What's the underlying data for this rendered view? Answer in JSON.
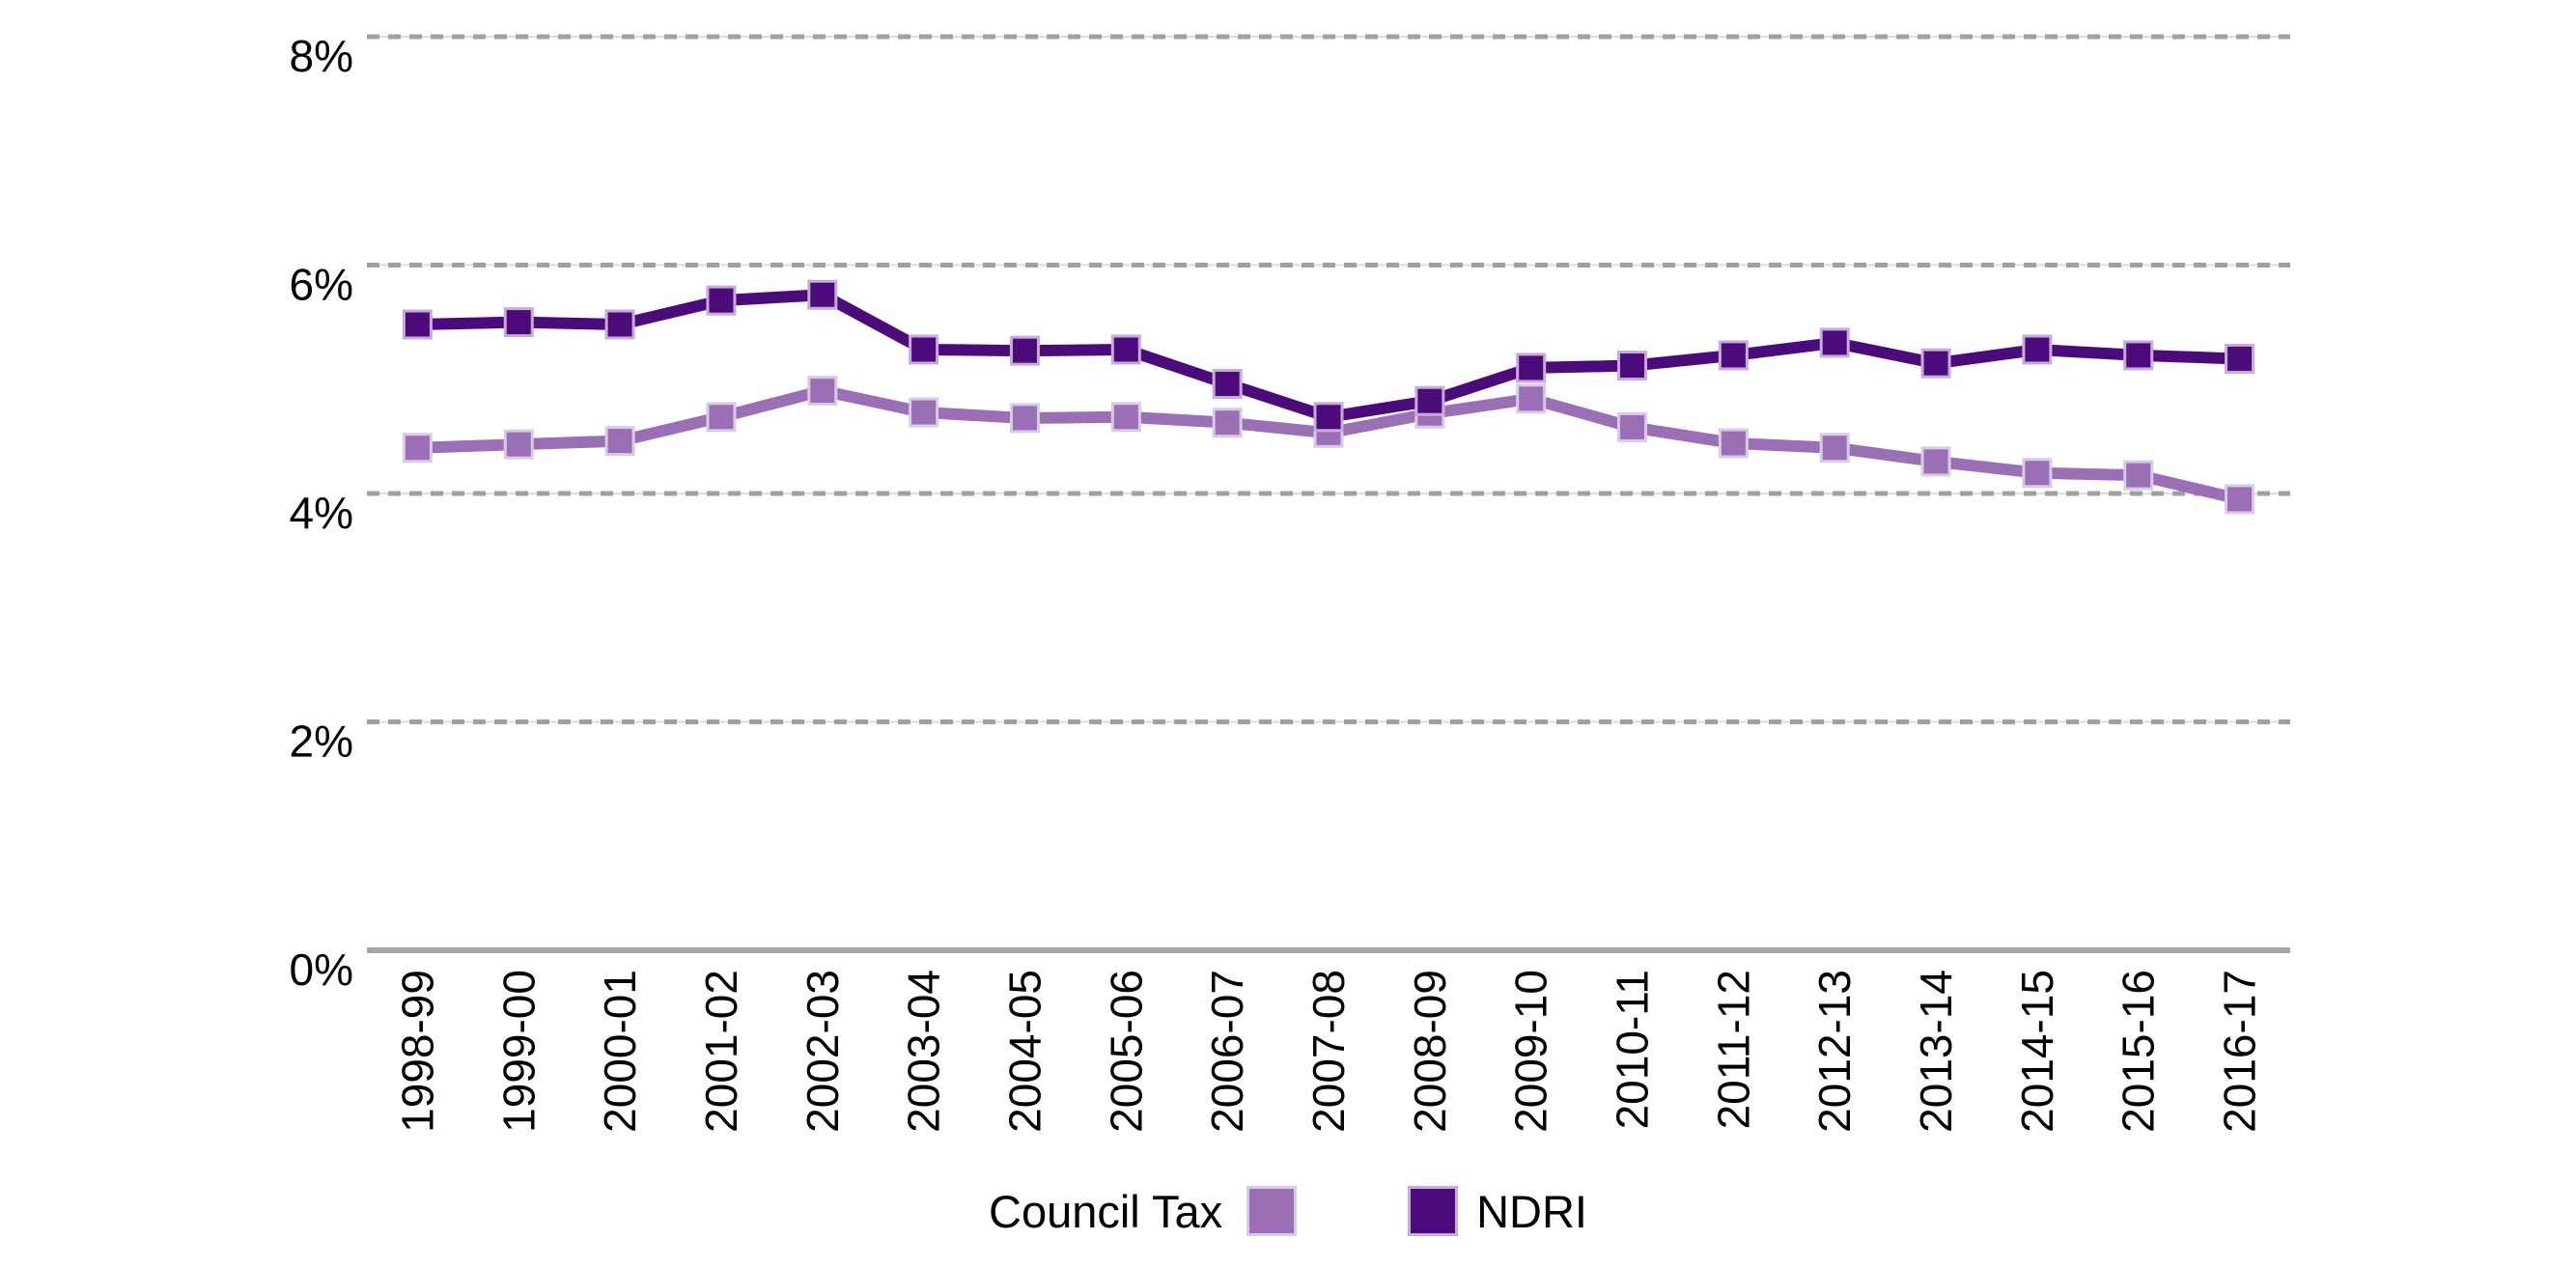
{
  "chart_data": {
    "type": "line",
    "title": "",
    "xlabel": "",
    "ylabel": "",
    "categories": [
      "1998-99",
      "1999-00",
      "2000-01",
      "2001-02",
      "2002-03",
      "2003-04",
      "2004-05",
      "2005-06",
      "2006-07",
      "2007-08",
      "2008-09",
      "2009-10",
      "2010-11",
      "2011-12",
      "2012-13",
      "2013-14",
      "2014-15",
      "2015-16",
      "2016-17"
    ],
    "series": [
      {
        "name": "Council Tax",
        "color": "#9a6fb5",
        "marker_border": "#d9cbe6",
        "marker": "square",
        "values": [
          4.4,
          4.43,
          4.46,
          4.67,
          4.9,
          4.71,
          4.66,
          4.67,
          4.62,
          4.53,
          4.7,
          4.83,
          4.58,
          4.44,
          4.4,
          4.28,
          4.18,
          4.16,
          3.95
        ]
      },
      {
        "name": "NDRI",
        "color": "#4c0b7a",
        "marker_border": "#c9abd9",
        "marker": "square",
        "values": [
          5.48,
          5.5,
          5.48,
          5.69,
          5.74,
          5.26,
          5.25,
          5.26,
          4.96,
          4.67,
          4.81,
          5.1,
          5.12,
          5.21,
          5.32,
          5.14,
          5.26,
          5.21,
          5.18
        ]
      }
    ],
    "yticks": [
      {
        "label": "8%",
        "value": 8
      },
      {
        "label": "6%",
        "value": 6
      },
      {
        "label": "4%",
        "value": 4
      },
      {
        "label": "2%",
        "value": 2
      },
      {
        "label": "0%",
        "value": 0
      }
    ],
    "ylim": [
      0,
      8.32
    ],
    "grid": "horizontal-dashed",
    "legend_position": "bottom-center",
    "axis_color": "#a6a6a6",
    "gridline_color": "#a0a0a0",
    "gridline_underlay_color": "#dcdcdc",
    "text_color": "#000000"
  }
}
